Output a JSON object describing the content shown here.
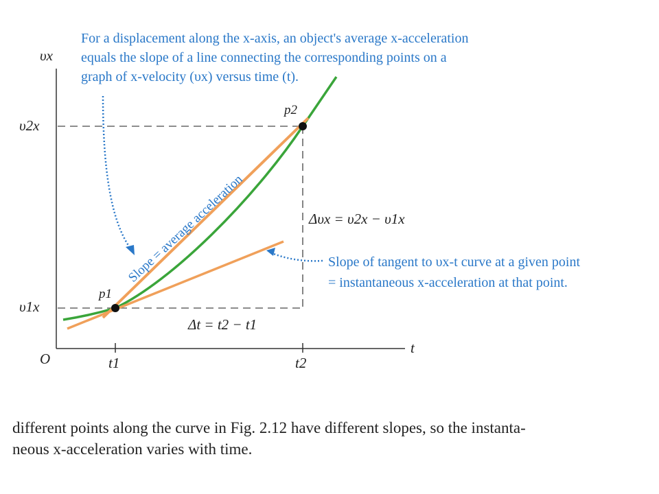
{
  "axes": {
    "x_label": "t",
    "y_label": "υx",
    "origin": "O",
    "x_ticks": [
      "t1",
      "t2"
    ],
    "y_ticks": [
      "υ1x",
      "υ2x"
    ]
  },
  "points": {
    "p1": "p1",
    "p2": "p2"
  },
  "annotations": {
    "top_note": [
      "For a displacement along the x-axis, an object's average x-acceleration",
      "equals the slope of a line connecting the corresponding points on a",
      "graph of x-velocity (υx) versus time (t)."
    ],
    "slope_label": "Slope = average acceleration",
    "delta_v": "Δυx = υ2x − υ1x",
    "delta_t": "Δt = t2 − t1",
    "tangent_note": [
      "Slope of tangent to υx-t curve at a given point",
      "= instantaneous x-acceleration at that point."
    ]
  },
  "colors": {
    "curve": "#3aa53a",
    "secant": "#f0a05a",
    "tangent": "#f0a05a",
    "note": "#2a78c8",
    "dashed": "#666666",
    "point": "#111111"
  },
  "caption": [
    "different points along the curve in Fig. 2.12 have different slopes, so the instanta-",
    "neous x-acceleration varies with time."
  ]
}
